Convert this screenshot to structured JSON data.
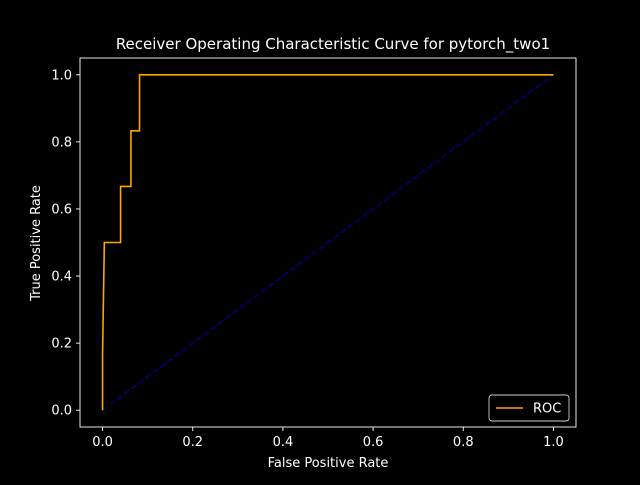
{
  "chart_data": {
    "type": "line",
    "title": "Receiver Operating Characteristic Curve for pytorch_two1",
    "xlabel": "False Positive Rate",
    "ylabel": "True Positive Rate",
    "xlim": [
      -0.05,
      1.05
    ],
    "ylim": [
      -0.05,
      1.05
    ],
    "xticks": [
      0.0,
      0.2,
      0.4,
      0.6,
      0.8,
      1.0
    ],
    "yticks": [
      0.0,
      0.2,
      0.4,
      0.6,
      0.8,
      1.0
    ],
    "xtick_labels": [
      "0.0",
      "0.2",
      "0.4",
      "0.6",
      "0.8",
      "1.0"
    ],
    "ytick_labels": [
      "0.0",
      "0.2",
      "0.4",
      "0.6",
      "0.8",
      "1.0"
    ],
    "grid": false,
    "legend_position": "lower-right",
    "series": [
      {
        "name": "ROC",
        "color": "#ffa500",
        "style": "solid",
        "x": [
          0.0,
          0.0,
          0.0,
          0.002,
          0.002,
          0.004,
          0.004,
          0.04,
          0.04,
          0.063,
          0.063,
          0.082,
          0.082,
          1.0
        ],
        "y": [
          0.0,
          0.167,
          0.167,
          0.333,
          0.333,
          0.5,
          0.5,
          0.5,
          0.667,
          0.667,
          0.833,
          0.833,
          1.0,
          1.0
        ]
      },
      {
        "color": "#000080",
        "style": "dashed",
        "x": [
          0.0,
          1.0
        ],
        "y": [
          0.0,
          1.0
        ]
      }
    ]
  }
}
